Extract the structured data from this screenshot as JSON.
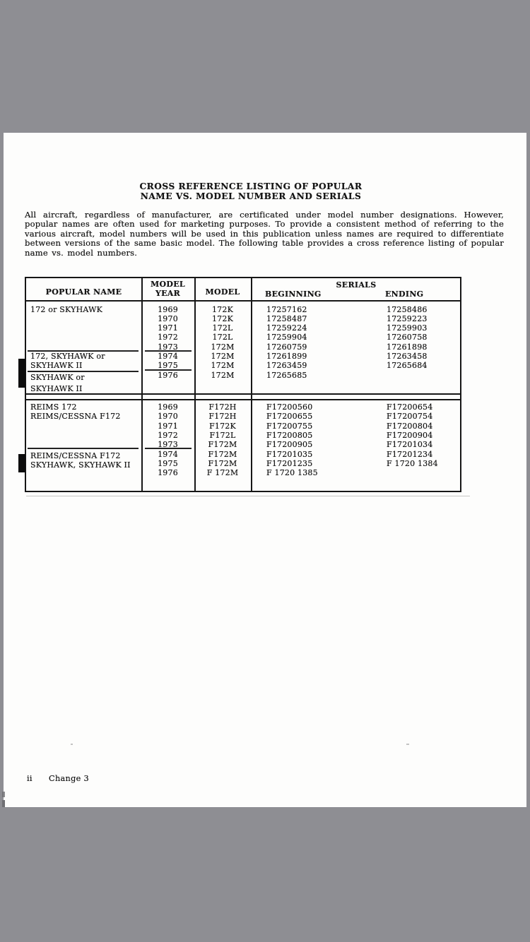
{
  "document": {
    "title_line1": "CROSS REFERENCE LISTING OF POPULAR",
    "title_line2": "NAME VS. MODEL NUMBER AND SERIALS",
    "intro": "All aircraft, regardless of manufacturer, are certificated under model number designations.  However, popular names are often used for marketing purposes.  To provide a consistent method of referring to the various aircraft, model numbers will be used in this publication unless names are required to differentiate between versions of the same basic model.  The following table provides a cross reference listing of popular name vs. model numbers.",
    "footer": {
      "page_number": "ii",
      "change_note": "Change 3"
    }
  },
  "table": {
    "header": {
      "popular_name": "POPULAR NAME",
      "model_year_line1": "MODEL",
      "model_year_line2": "YEAR",
      "model": "MODEL",
      "serials": "SERIALS",
      "beginning": "BEGINNING",
      "ending": "ENDING"
    },
    "groups": [
      {
        "name_lines": [
          "172 or SKYHAWK",
          "172, SKYHAWK or",
          "SKYHAWK II",
          "SKYHAWK or",
          "SKYHAWK II"
        ],
        "rows": [
          {
            "year": "1969",
            "model": "172K",
            "begin": "17257162",
            "end": "17258486"
          },
          {
            "year": "1970",
            "model": "172K",
            "begin": "17258487",
            "end": "17259223"
          },
          {
            "year": "1971",
            "model": "172L",
            "begin": "17259224",
            "end": "17259903"
          },
          {
            "year": "1972",
            "model": "172L",
            "begin": "17259904",
            "end": "17260758"
          },
          {
            "year": "1973",
            "model": "172M",
            "begin": "17260759",
            "end": "17261898"
          },
          {
            "year": "1974",
            "model": "172M",
            "begin": "17261899",
            "end": "17263458"
          },
          {
            "year": "1975",
            "model": "172M",
            "begin": "17263459",
            "end": "17265684"
          },
          {
            "year": "1976",
            "model": "172M",
            "begin": "17265685",
            "end": ""
          }
        ]
      },
      {
        "name_lines": [
          "REIMS 172",
          "REIMS/CESSNA F172",
          "REIMS/CESSNA F172",
          "SKYHAWK, SKYHAWK II"
        ],
        "rows": [
          {
            "year": "1969",
            "model": "F172H",
            "begin": "F17200560",
            "end": "F17200654"
          },
          {
            "year": "1970",
            "model": "F172H",
            "begin": "F17200655",
            "end": "F17200754"
          },
          {
            "year": "1971",
            "model": "F172K",
            "begin": "F17200755",
            "end": "F17200804"
          },
          {
            "year": "1972",
            "model": "F172L",
            "begin": "F17200805",
            "end": "F17200904"
          },
          {
            "year": "1973",
            "model": "F172M",
            "begin": "F17200905",
            "end": "F17201034"
          },
          {
            "year": "1974",
            "model": "F172M",
            "begin": "F17201035",
            "end": "F17201234"
          },
          {
            "year": "1975",
            "model": "F172M",
            "begin": "F17201235",
            "end": "F 1720 1384"
          },
          {
            "year": "1976",
            "model": "F 172M",
            "begin": "F 1720 1385",
            "end": ""
          }
        ]
      }
    ]
  }
}
